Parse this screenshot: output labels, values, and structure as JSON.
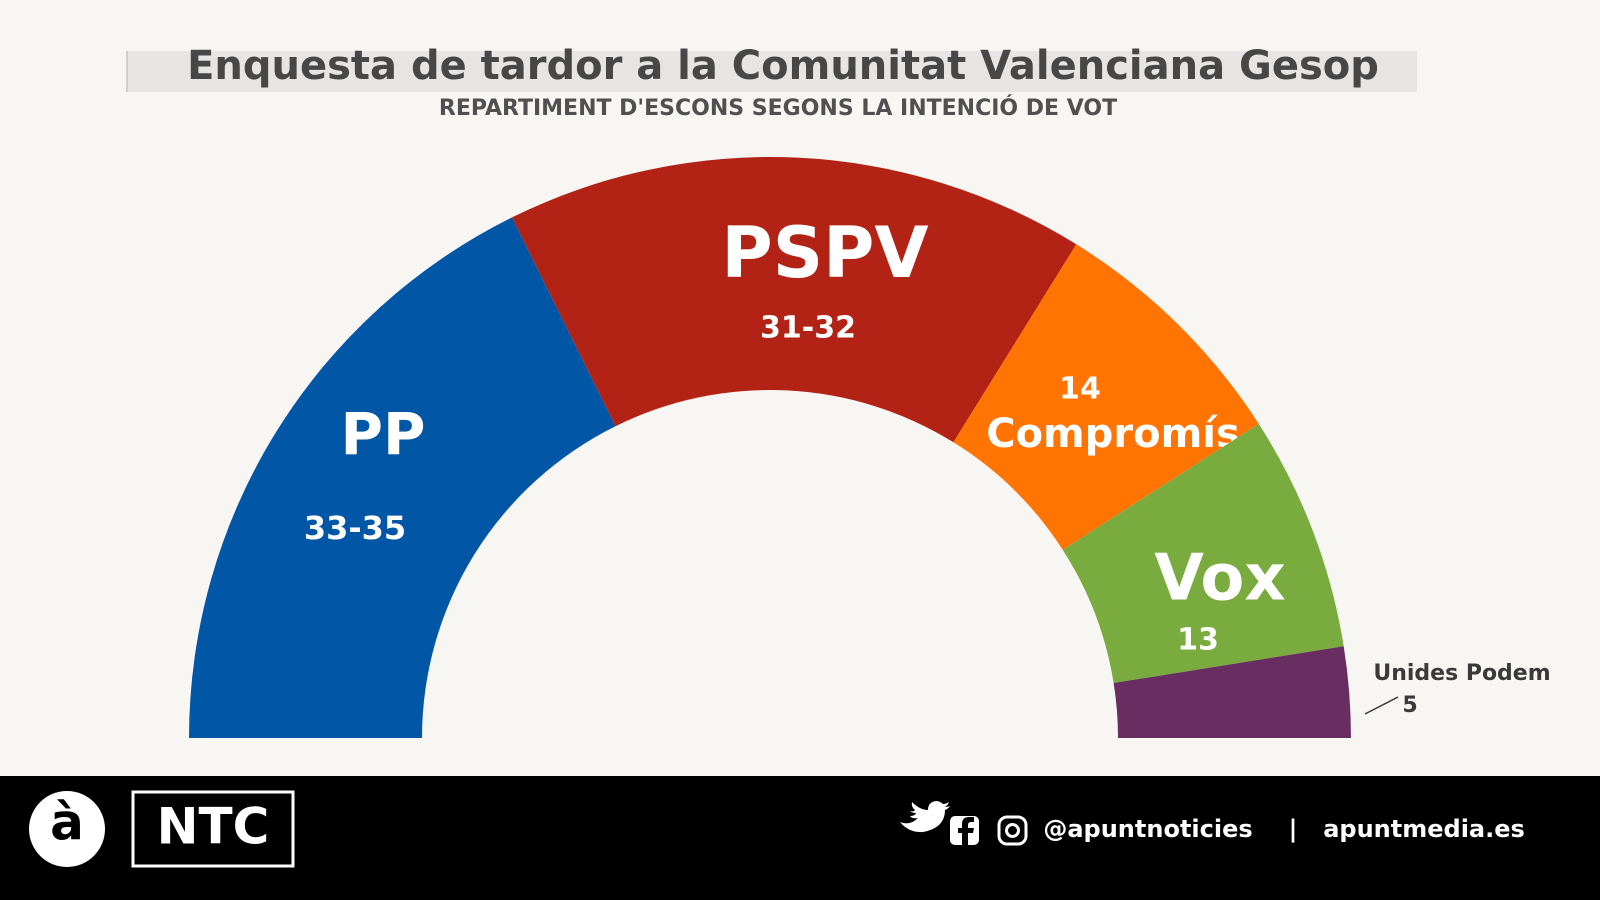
{
  "chart_data": {
    "type": "half-donut",
    "title": "Enquesta de tardor a la Comunitat Valenciana Gesop",
    "subtitle": "REPARTIMENT D'ESCONS SEGONS LA INTENCIÓ DE VOT",
    "categories": [
      "PP",
      "PSPV",
      "Compromís",
      "Vox",
      "Unides Podem"
    ],
    "values": [
      35,
      32,
      14,
      13,
      5
    ],
    "value_labels": [
      "33-35",
      "31-32",
      "14",
      "13",
      "5"
    ],
    "colors": [
      "#0156a6",
      "#b22316",
      "#ff7403",
      "#7aab3f",
      "#692d62"
    ]
  },
  "footer": {
    "logo": "à",
    "brand": "NTC",
    "handle": "@apuntnoticies",
    "separator": "|",
    "site": "apuntmedia.es"
  }
}
